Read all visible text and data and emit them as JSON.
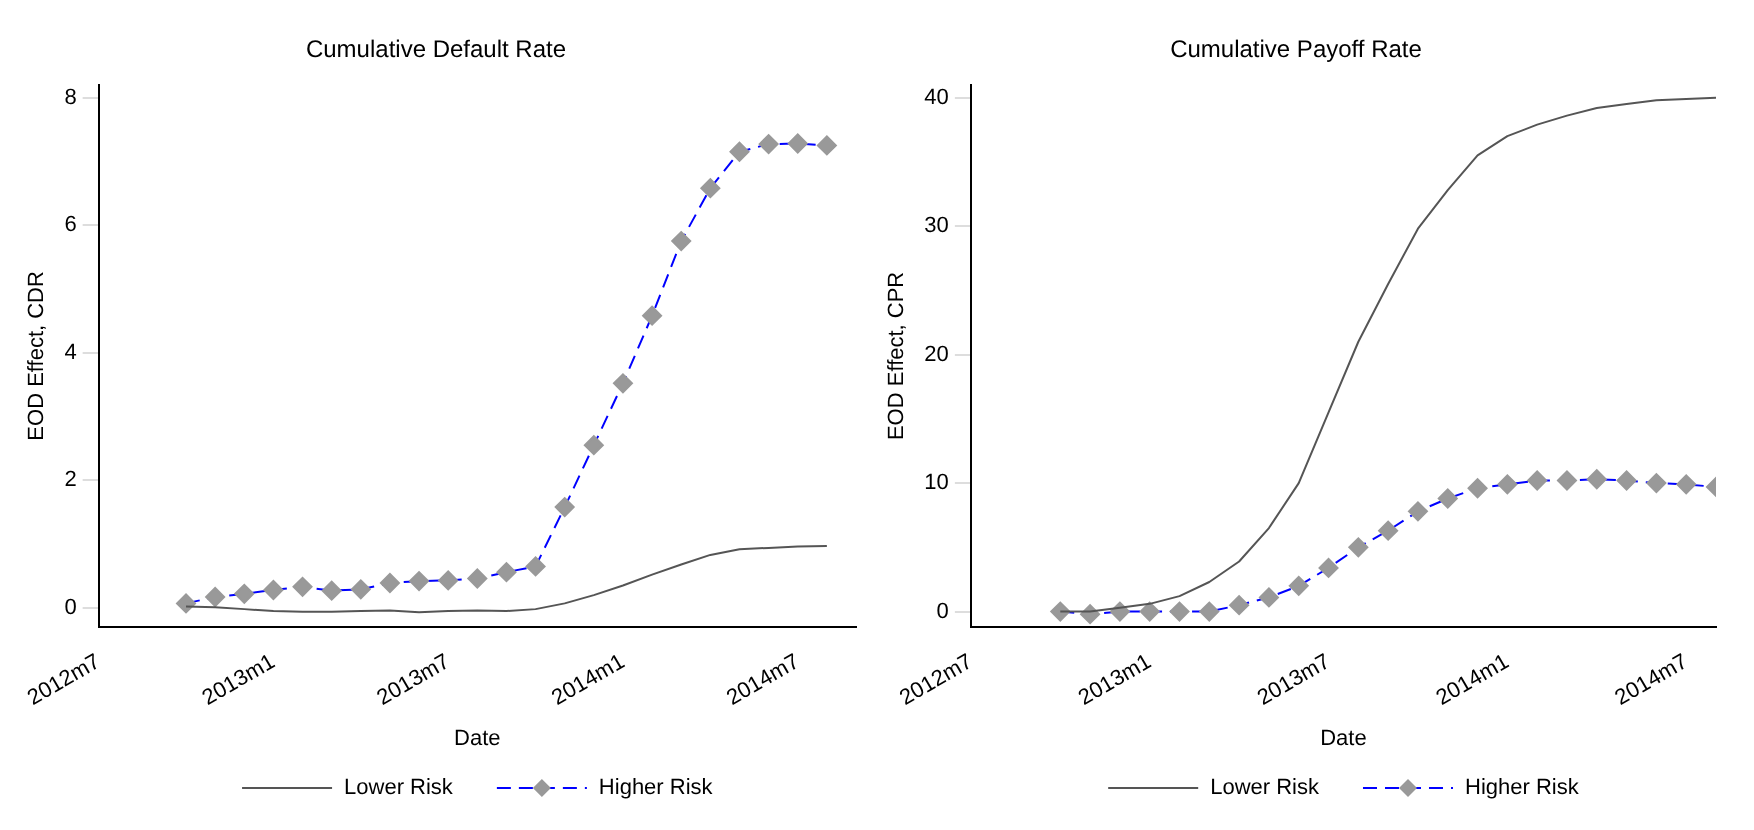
{
  "chart_data": [
    {
      "type": "line",
      "title": "Cumulative Default Rate",
      "xlabel": "Date",
      "ylabel": "EOD Effect, CDR",
      "x": [
        "2012-10",
        "2012-11",
        "2012-12",
        "2013-01",
        "2013-02",
        "2013-03",
        "2013-04",
        "2013-05",
        "2013-06",
        "2013-07",
        "2013-08",
        "2013-09",
        "2013-10",
        "2013-11",
        "2013-12",
        "2014-01",
        "2014-02",
        "2014-03",
        "2014-04",
        "2014-05",
        "2014-06",
        "2014-07",
        "2014-08"
      ],
      "series": [
        {
          "name": "Lower Risk",
          "color": "#555555",
          "marker": "none",
          "line_style": "solid",
          "values": [
            0.02,
            0.01,
            -0.02,
            -0.05,
            -0.06,
            -0.06,
            -0.05,
            -0.04,
            -0.07,
            -0.05,
            -0.04,
            -0.05,
            -0.02,
            0.07,
            0.2,
            0.35,
            0.52,
            0.68,
            0.83,
            0.92,
            0.94,
            0.96,
            0.97
          ]
        },
        {
          "name": "Higher Risk",
          "color": "#0000ff",
          "marker": "diamond",
          "line_style": "dashed",
          "values": [
            0.07,
            0.17,
            0.22,
            0.28,
            0.33,
            0.27,
            0.29,
            0.39,
            0.42,
            0.43,
            0.46,
            0.56,
            0.65,
            1.58,
            2.55,
            3.52,
            4.58,
            5.75,
            6.58,
            7.15,
            7.27,
            7.28,
            7.25
          ]
        }
      ],
      "xlim": [
        "2012-07",
        "2014-09"
      ],
      "xticks": [
        {
          "value": "2012-07",
          "label": "2012m7"
        },
        {
          "value": "2013-01",
          "label": "2013m1"
        },
        {
          "value": "2013-07",
          "label": "2013m7"
        },
        {
          "value": "2014-01",
          "label": "2014m1"
        },
        {
          "value": "2014-07",
          "label": "2014m7"
        }
      ],
      "ylim": [
        -0.3,
        8.2
      ],
      "yticks": [
        0,
        2,
        4,
        6,
        8
      ],
      "grid": false,
      "legend": "bottom"
    },
    {
      "type": "line",
      "title": "Cumulative Payoff Rate",
      "xlabel": "Date",
      "ylabel": "EOD Effect, CPR",
      "x": [
        "2012-10",
        "2012-11",
        "2012-12",
        "2013-01",
        "2013-02",
        "2013-03",
        "2013-04",
        "2013-05",
        "2013-06",
        "2013-07",
        "2013-08",
        "2013-09",
        "2013-10",
        "2013-11",
        "2013-12",
        "2014-01",
        "2014-02",
        "2014-03",
        "2014-04",
        "2014-05",
        "2014-06",
        "2014-07",
        "2014-08"
      ],
      "series": [
        {
          "name": "Lower Risk",
          "color": "#555555",
          "marker": "none",
          "line_style": "solid",
          "values": [
            0,
            0,
            0.3,
            0.6,
            1.2,
            2.3,
            3.9,
            6.5,
            10,
            15.5,
            21,
            25.5,
            29.8,
            32.8,
            35.5,
            37,
            37.9,
            38.6,
            39.2,
            39.5,
            39.8,
            39.9,
            40
          ]
        },
        {
          "name": "Higher Risk",
          "color": "#0000ff",
          "marker": "diamond",
          "line_style": "dashed",
          "values": [
            0,
            -0.2,
            0,
            0,
            0,
            0,
            0.5,
            1.1,
            2,
            3.4,
            5,
            6.3,
            7.8,
            8.8,
            9.6,
            9.9,
            10.2,
            10.2,
            10.3,
            10.2,
            10,
            9.9,
            9.7
          ]
        }
      ],
      "xlim": [
        "2012-07",
        "2014-08"
      ],
      "xticks": [
        {
          "value": "2012-07",
          "label": "2012m7"
        },
        {
          "value": "2013-01",
          "label": "2013m1"
        },
        {
          "value": "2013-07",
          "label": "2013m7"
        },
        {
          "value": "2014-01",
          "label": "2014m1"
        },
        {
          "value": "2014-07",
          "label": "2014m7"
        }
      ],
      "ylim": [
        -1.2,
        41
      ],
      "yticks": [
        0,
        10,
        20,
        30,
        40
      ],
      "grid": false,
      "legend": "bottom"
    }
  ]
}
